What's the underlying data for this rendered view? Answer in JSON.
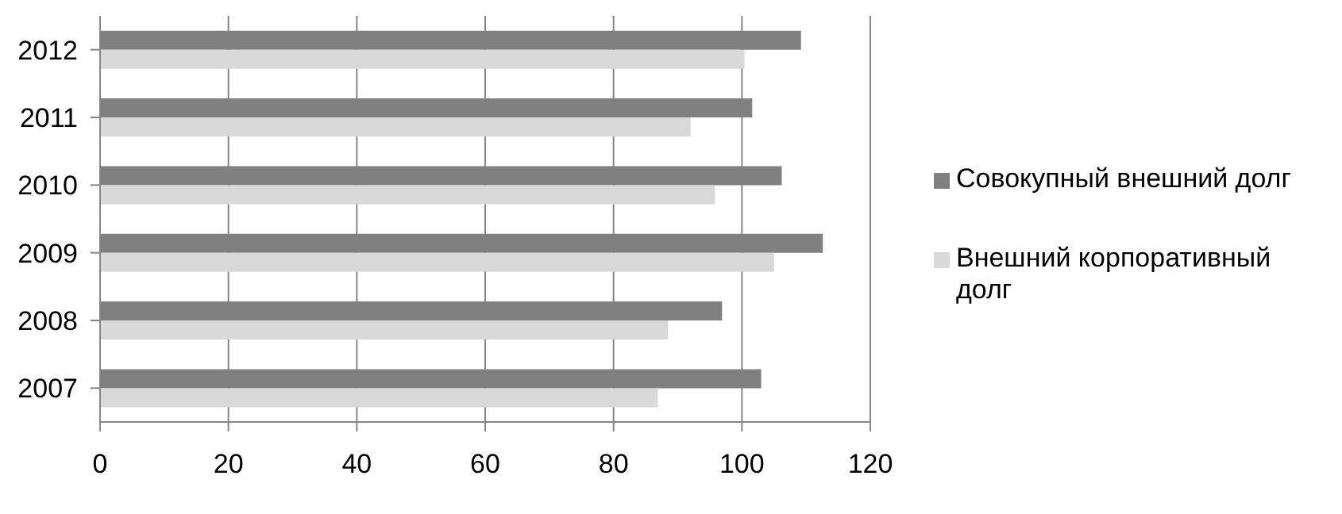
{
  "chart_data": {
    "type": "bar",
    "orientation": "horizontal",
    "categories": [
      "2012",
      "2011",
      "2010",
      "2009",
      "2008",
      "2007"
    ],
    "series": [
      {
        "name": "Совокупный внешний долг",
        "color": "#808080",
        "values": [
          109.2,
          101.6,
          106.2,
          112.6,
          96.9,
          103.0
        ]
      },
      {
        "name": "Внешний корпоративный долг",
        "color": "#d9d9d9",
        "values": [
          100.4,
          92.0,
          95.8,
          105.0,
          88.5,
          86.9
        ]
      }
    ],
    "xlim": [
      0,
      120
    ],
    "xticks": [
      0,
      20,
      40,
      60,
      80,
      100,
      120
    ],
    "grid": "x",
    "legend": "right"
  }
}
